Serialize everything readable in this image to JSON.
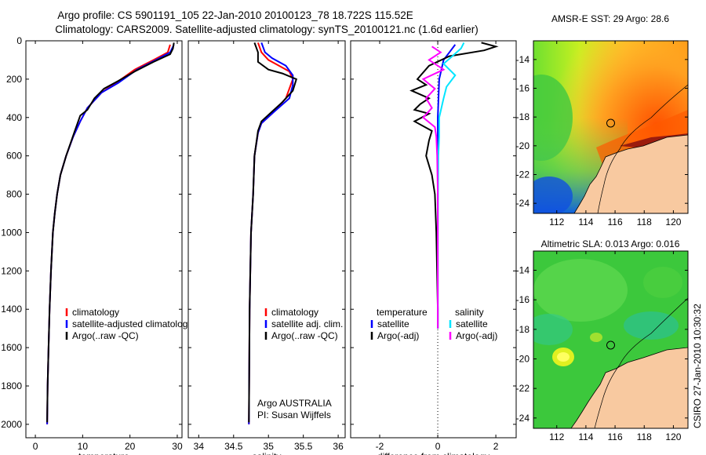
{
  "title": {
    "line1": "Argo profile: CS 5901191_105 22-Jan-2010 20100123_78 18.722S 115.52E",
    "line2": "Climatology: CARS2009. Satellite-adjusted climatology: synTS_20100121.nc (1.6d earlier)"
  },
  "colors": {
    "climatology": "#ff0000",
    "satellite": "#0000ff",
    "argo": "#000000",
    "salinity_satellite": "#00e5ff",
    "salinity_argo": "#ff00ff",
    "land": "#f8c9a0"
  },
  "credit": "CSIRO 27-Jan-2010 10:30:32",
  "chart_data": [
    {
      "type": "line",
      "name": "temperature",
      "xlabel": "temperature",
      "ylabel": "",
      "xlim": [
        -2,
        31
      ],
      "ylim": [
        2070,
        0
      ],
      "x_ticks": [
        "0",
        "10",
        "20",
        "30"
      ],
      "y_ticks": [
        "0",
        "200",
        "400",
        "600",
        "800",
        "1000",
        "1200",
        "1400",
        "1600",
        "1800",
        "2000"
      ],
      "legend": [
        "climatology",
        "satellite-adjusted climatolog",
        "Argo(..raw -QC)"
      ],
      "series": [
        {
          "name": "climatology",
          "color": "#ff0000",
          "points": [
            [
              28.5,
              20
            ],
            [
              28,
              60
            ],
            [
              25,
              100
            ],
            [
              21,
              150
            ],
            [
              17,
              220
            ],
            [
              14,
              270
            ],
            [
              11,
              350
            ],
            [
              9.5,
              420
            ],
            [
              8,
              500
            ],
            [
              6.5,
              600
            ],
            [
              5.3,
              700
            ],
            [
              4.6,
              800
            ],
            [
              4.1,
              900
            ],
            [
              3.7,
              1000
            ],
            [
              3.3,
              1200
            ],
            [
              3.0,
              1400
            ],
            [
              2.8,
              1600
            ],
            [
              2.6,
              1800
            ],
            [
              2.5,
              2000
            ]
          ]
        },
        {
          "name": "satellite-adjusted climatolog",
          "color": "#0000ff",
          "points": [
            [
              29.3,
              20
            ],
            [
              28.5,
              60
            ],
            [
              25.5,
              100
            ],
            [
              21.5,
              150
            ],
            [
              17.5,
              220
            ],
            [
              14,
              270
            ],
            [
              11,
              350
            ],
            [
              9.5,
              420
            ],
            [
              8,
              500
            ],
            [
              6.5,
              600
            ],
            [
              5.3,
              700
            ],
            [
              4.6,
              800
            ],
            [
              4.1,
              900
            ],
            [
              3.7,
              1000
            ],
            [
              3.3,
              1200
            ],
            [
              3.0,
              1400
            ],
            [
              2.8,
              1600
            ],
            [
              2.6,
              1800
            ],
            [
              2.5,
              2000
            ]
          ]
        },
        {
          "name": "Argo(..raw -QC)",
          "color": "#000000",
          "points": [
            [
              29.3,
              10
            ],
            [
              29.1,
              40
            ],
            [
              28.5,
              70
            ],
            [
              25,
              110
            ],
            [
              21,
              160
            ],
            [
              17.5,
              210
            ],
            [
              14.5,
              250
            ],
            [
              12.5,
              300
            ],
            [
              11,
              360
            ],
            [
              9.5,
              390
            ],
            [
              8.2,
              480
            ],
            [
              6.5,
              600
            ],
            [
              5.3,
              700
            ],
            [
              4.6,
              800
            ],
            [
              4.1,
              900
            ],
            [
              3.7,
              1000
            ],
            [
              3.3,
              1200
            ],
            [
              3.0,
              1400
            ],
            [
              2.8,
              1600
            ],
            [
              2.6,
              1800
            ],
            [
              2.5,
              1990
            ]
          ]
        }
      ]
    },
    {
      "type": "line",
      "name": "salinity",
      "xlabel": "salinity",
      "xlim": [
        33.85,
        36.1
      ],
      "ylim": [
        2070,
        0
      ],
      "x_ticks": [
        "34",
        "34.5",
        "35",
        "35.5",
        "36"
      ],
      "legend": [
        "climatology",
        "satellite adj. clim.",
        "Argo(..raw -QC)"
      ],
      "annotation": [
        "Argo AUSTRALIA",
        "PI: Susan Wijffels"
      ],
      "series": [
        {
          "name": "climatology",
          "color": "#ff0000",
          "points": [
            [
              34.85,
              10
            ],
            [
              34.9,
              60
            ],
            [
              35.0,
              100
            ],
            [
              35.15,
              130
            ],
            [
              35.3,
              160
            ],
            [
              35.35,
              200
            ],
            [
              35.25,
              300
            ],
            [
              35.05,
              380
            ],
            [
              34.9,
              430
            ],
            [
              34.85,
              480
            ],
            [
              34.8,
              600
            ],
            [
              34.78,
              800
            ],
            [
              34.75,
              1000
            ],
            [
              34.73,
              1400
            ],
            [
              34.72,
              2000
            ]
          ]
        },
        {
          "name": "satellite adj. clim.",
          "color": "#0000ff",
          "points": [
            [
              34.9,
              10
            ],
            [
              34.95,
              60
            ],
            [
              35.05,
              90
            ],
            [
              35.25,
              130
            ],
            [
              35.35,
              180
            ],
            [
              35.35,
              230
            ],
            [
              35.3,
              300
            ],
            [
              35.05,
              380
            ],
            [
              34.9,
              430
            ],
            [
              34.85,
              480
            ],
            [
              34.8,
              600
            ],
            [
              34.78,
              800
            ],
            [
              34.75,
              1000
            ],
            [
              34.73,
              1400
            ],
            [
              34.72,
              2000
            ]
          ]
        },
        {
          "name": "Argo(..raw -QC)",
          "color": "#000000",
          "points": [
            [
              34.8,
              10
            ],
            [
              34.85,
              60
            ],
            [
              34.85,
              110
            ],
            [
              35.0,
              150
            ],
            [
              35.2,
              170
            ],
            [
              35.4,
              200
            ],
            [
              35.35,
              260
            ],
            [
              35.2,
              320
            ],
            [
              35.05,
              370
            ],
            [
              34.9,
              420
            ],
            [
              34.85,
              470
            ],
            [
              34.8,
              600
            ],
            [
              34.78,
              800
            ],
            [
              34.75,
              1000
            ],
            [
              34.73,
              1400
            ],
            [
              34.72,
              1990
            ]
          ]
        }
      ]
    },
    {
      "type": "line",
      "name": "difference",
      "xlabel": "difference from climatology",
      "xlim": [
        -3,
        2.7
      ],
      "ylim": [
        2070,
        0
      ],
      "x_ticks": [
        "-2",
        "0",
        "2"
      ],
      "legend": [
        "temperature",
        "satellite",
        "Argo(-adj)",
        "salinity",
        "satellite",
        "Argo(-adj)"
      ],
      "series": [
        {
          "name": "temperature satellite",
          "color": "#0000ff",
          "points": [
            [
              0.6,
              20
            ],
            [
              0.4,
              60
            ],
            [
              0.2,
              100
            ],
            [
              0.05,
              200
            ],
            [
              0,
              400
            ],
            [
              0,
              600
            ],
            [
              0,
              1000
            ],
            [
              0,
              1400
            ],
            [
              0,
              1500
            ]
          ]
        },
        {
          "name": "temperature Argo(-adj)",
          "color": "#000000",
          "points": [
            [
              1.5,
              10
            ],
            [
              2.0,
              30
            ],
            [
              1.6,
              50
            ],
            [
              0.4,
              80
            ],
            [
              -0.3,
              130
            ],
            [
              -0.7,
              200
            ],
            [
              -0.4,
              230
            ],
            [
              -0.9,
              260
            ],
            [
              -0.3,
              300
            ],
            [
              -0.6,
              330
            ],
            [
              -0.8,
              360
            ],
            [
              -0.3,
              380
            ],
            [
              -0.8,
              420
            ],
            [
              -0.2,
              470
            ],
            [
              -0.3,
              520
            ],
            [
              -0.4,
              600
            ],
            [
              -0.2,
              700
            ],
            [
              -0.1,
              800
            ],
            [
              -0.05,
              1000
            ],
            [
              0,
              1400
            ],
            [
              0,
              1500
            ]
          ]
        },
        {
          "name": "salinity satellite",
          "color": "#00e5ff",
          "points": [
            [
              0.9,
              10
            ],
            [
              0.8,
              40
            ],
            [
              0.5,
              80
            ],
            [
              0.2,
              120
            ],
            [
              0.6,
              180
            ],
            [
              0.3,
              240
            ],
            [
              0.2,
              300
            ],
            [
              0.05,
              400
            ],
            [
              0.05,
              500
            ],
            [
              0.02,
              600
            ],
            [
              0.01,
              800
            ],
            [
              0,
              1000
            ],
            [
              0,
              1400
            ],
            [
              0,
              1500
            ]
          ]
        },
        {
          "name": "salinity Argo(-adj)",
          "color": "#ff00ff",
          "points": [
            [
              -0.2,
              30
            ],
            [
              0.1,
              60
            ],
            [
              -0.3,
              100
            ],
            [
              0.2,
              150
            ],
            [
              -0.5,
              200
            ],
            [
              -0.1,
              250
            ],
            [
              -0.4,
              300
            ],
            [
              -0.2,
              350
            ],
            [
              -0.5,
              400
            ],
            [
              -0.1,
              450
            ],
            [
              -0.05,
              500
            ],
            [
              -0.02,
              600
            ],
            [
              0,
              800
            ],
            [
              0,
              1000
            ],
            [
              0,
              1400
            ],
            [
              0,
              1500
            ]
          ]
        }
      ]
    },
    {
      "type": "heatmap",
      "name": "sst-map",
      "title": "AMSR-E SST: 29 Argo: 28.6",
      "xlim": [
        110.4,
        121
      ],
      "ylim": [
        -24.7,
        -12.7
      ],
      "x_ticks": [
        "112",
        "114",
        "116",
        "118",
        "120"
      ],
      "y_ticks": [
        "-14",
        "-16",
        "-18",
        "-20",
        "-22",
        "-24"
      ],
      "float_position": [
        115.52,
        -18.722
      ]
    },
    {
      "type": "heatmap",
      "name": "sla-map",
      "title": "Altimetric SLA: 0.013 Argo: 0.016",
      "xlim": [
        110.4,
        121
      ],
      "ylim": [
        -24.7,
        -12.7
      ],
      "x_ticks": [
        "112",
        "114",
        "116",
        "118",
        "120"
      ],
      "y_ticks": [
        "-14",
        "-16",
        "-18",
        "-20",
        "-22",
        "-24"
      ],
      "float_position": [
        115.52,
        -18.722
      ]
    }
  ]
}
